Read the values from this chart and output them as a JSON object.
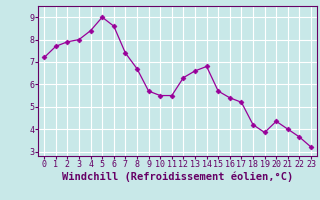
{
  "x": [
    0,
    1,
    2,
    3,
    4,
    5,
    6,
    7,
    8,
    9,
    10,
    11,
    12,
    13,
    14,
    15,
    16,
    17,
    18,
    19,
    20,
    21,
    22,
    23
  ],
  "y": [
    7.2,
    7.7,
    7.9,
    8.0,
    8.4,
    9.0,
    8.6,
    7.4,
    6.7,
    5.7,
    5.5,
    5.5,
    6.3,
    6.6,
    6.8,
    5.7,
    5.4,
    5.2,
    4.2,
    3.85,
    4.35,
    4.0,
    3.65,
    3.2
  ],
  "line_color": "#990099",
  "marker": "D",
  "marker_size": 2.5,
  "bg_color": "#c8e8e8",
  "grid_color": "#ffffff",
  "xlabel": "Windchill (Refroidissement éolien,°C)",
  "xlabel_color": "#660066",
  "tick_color": "#660066",
  "ylim": [
    2.8,
    9.5
  ],
  "yticks": [
    3,
    4,
    5,
    6,
    7,
    8,
    9
  ],
  "xlim": [
    -0.5,
    23.5
  ],
  "xticks": [
    0,
    1,
    2,
    3,
    4,
    5,
    6,
    7,
    8,
    9,
    10,
    11,
    12,
    13,
    14,
    15,
    16,
    17,
    18,
    19,
    20,
    21,
    22,
    23
  ],
  "tick_fontsize": 6,
  "xlabel_fontsize": 7.5,
  "spine_color": "#660066",
  "axis_linewidth": 0.8
}
